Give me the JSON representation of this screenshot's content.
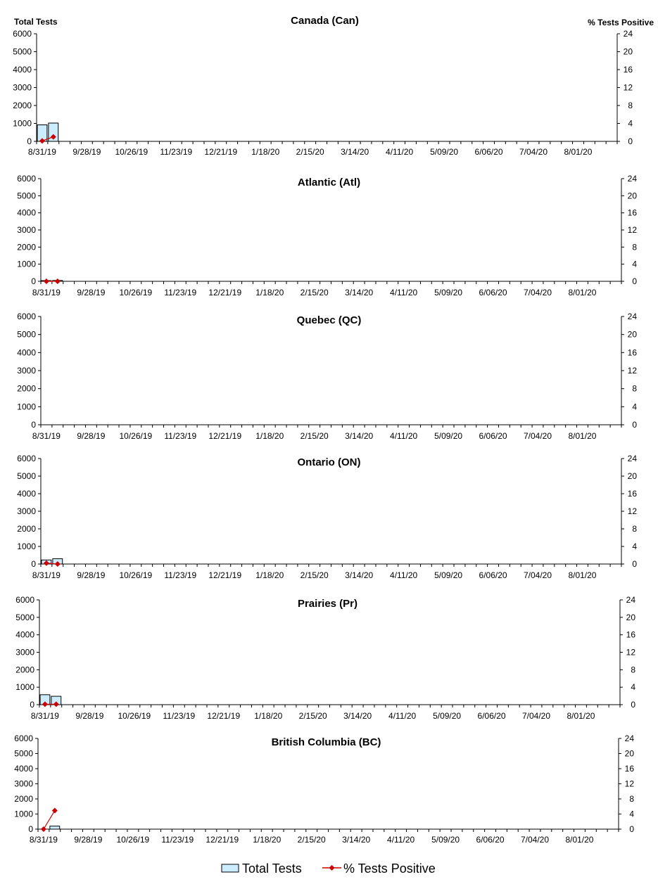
{
  "colors": {
    "bar_fill": "#CCECFF",
    "bar_stroke": "#000000",
    "line": "#CC0000",
    "axis": "#000000"
  },
  "chart_data": [
    {
      "type": "bar+line",
      "title": "Canada (Can)",
      "ylabel": "Total Tests",
      "y2label": "% Tests Positive",
      "ylim": [
        0,
        6000
      ],
      "y2lim": [
        0,
        24
      ],
      "yticks": [
        "0",
        "1000",
        "2000",
        "3000",
        "4000",
        "5000",
        "6000"
      ],
      "y2ticks": [
        "0",
        "4",
        "8",
        "12",
        "16",
        "20",
        "24"
      ],
      "xticks": [
        "8/31/19",
        "9/28/19",
        "10/26/19",
        "11/23/19",
        "12/21/19",
        "1/18/20",
        "2/15/20",
        "3/14/20",
        "4/11/20",
        "5/09/20",
        "6/06/20",
        "7/04/20",
        "8/01/20"
      ],
      "bars": [
        920,
        1020
      ],
      "line": [
        0.1,
        1.0
      ]
    },
    {
      "type": "bar+line",
      "title": "Atlantic (Atl)",
      "ylim": [
        0,
        6000
      ],
      "y2lim": [
        0,
        24
      ],
      "yticks": [
        "0",
        "1000",
        "2000",
        "3000",
        "4000",
        "5000",
        "6000"
      ],
      "y2ticks": [
        "0",
        "4",
        "8",
        "12",
        "16",
        "20",
        "24"
      ],
      "xticks": [
        "8/31/19",
        "9/28/19",
        "10/26/19",
        "11/23/19",
        "12/21/19",
        "1/18/20",
        "2/15/20",
        "3/14/20",
        "4/11/20",
        "5/09/20",
        "6/06/20",
        "7/04/20",
        "8/01/20"
      ],
      "bars": [
        40,
        50
      ],
      "line": [
        0,
        0
      ]
    },
    {
      "type": "bar+line",
      "title": "Quebec (QC)",
      "ylim": [
        0,
        6000
      ],
      "y2lim": [
        0,
        24
      ],
      "yticks": [
        "0",
        "1000",
        "2000",
        "3000",
        "4000",
        "5000",
        "6000"
      ],
      "y2ticks": [
        "0",
        "4",
        "8",
        "12",
        "16",
        "20",
        "24"
      ],
      "xticks": [
        "8/31/19",
        "9/28/19",
        "10/26/19",
        "11/23/19",
        "12/21/19",
        "1/18/20",
        "2/15/20",
        "3/14/20",
        "4/11/20",
        "5/09/20",
        "6/06/20",
        "7/04/20",
        "8/01/20"
      ],
      "bars": [],
      "line": []
    },
    {
      "type": "bar+line",
      "title": "Ontario (ON)",
      "ylim": [
        0,
        6000
      ],
      "y2lim": [
        0,
        24
      ],
      "yticks": [
        "0",
        "1000",
        "2000",
        "3000",
        "4000",
        "5000",
        "6000"
      ],
      "y2ticks": [
        "0",
        "4",
        "8",
        "12",
        "16",
        "20",
        "24"
      ],
      "xticks": [
        "8/31/19",
        "9/28/19",
        "10/26/19",
        "11/23/19",
        "12/21/19",
        "1/18/20",
        "2/15/20",
        "3/14/20",
        "4/11/20",
        "5/09/20",
        "6/06/20",
        "7/04/20",
        "8/01/20"
      ],
      "bars": [
        230,
        300
      ],
      "line": [
        0.2,
        0
      ]
    },
    {
      "type": "bar+line",
      "title": "Prairies (Pr)",
      "ylim": [
        0,
        6000
      ],
      "y2lim": [
        0,
        24
      ],
      "yticks": [
        "0",
        "1000",
        "2000",
        "3000",
        "4000",
        "5000",
        "6000"
      ],
      "y2ticks": [
        "0",
        "4",
        "8",
        "12",
        "16",
        "20",
        "24"
      ],
      "xticks": [
        "8/31/19",
        "9/28/19",
        "10/26/19",
        "11/23/19",
        "12/21/19",
        "1/18/20",
        "2/15/20",
        "3/14/20",
        "4/11/20",
        "5/09/20",
        "6/06/20",
        "7/04/20",
        "8/01/20"
      ],
      "bars": [
        570,
        480
      ],
      "line": [
        0.1,
        0.1
      ]
    },
    {
      "type": "bar+line",
      "title": "British Columbia (BC)",
      "ylim": [
        0,
        6000
      ],
      "y2lim": [
        0,
        24
      ],
      "yticks": [
        "0",
        "1000",
        "2000",
        "3000",
        "4000",
        "5000",
        "6000"
      ],
      "y2ticks": [
        "0",
        "4",
        "8",
        "12",
        "16",
        "20",
        "24"
      ],
      "xticks": [
        "8/31/19",
        "9/28/19",
        "10/26/19",
        "11/23/19",
        "12/21/19",
        "1/18/20",
        "2/15/20",
        "3/14/20",
        "4/11/20",
        "5/09/20",
        "6/06/20",
        "7/04/20",
        "8/01/20"
      ],
      "bars": [
        0,
        200
      ],
      "line": [
        0,
        4.9
      ]
    }
  ],
  "legend": {
    "bars_label": "Total Tests",
    "line_label": "% Tests Positive"
  }
}
